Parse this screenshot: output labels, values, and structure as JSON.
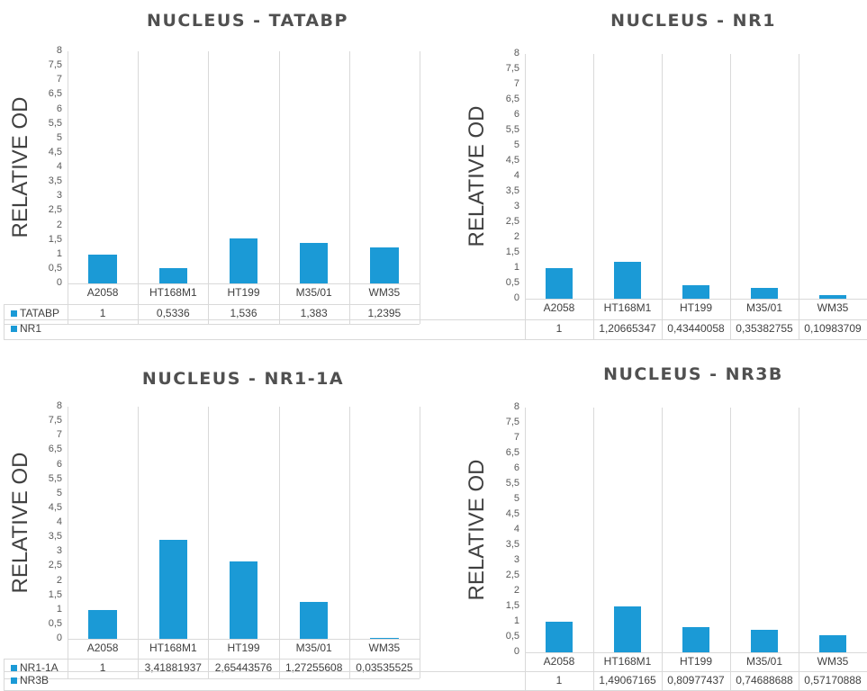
{
  "chart_data": [
    {
      "type": "bar",
      "title": "NUCLEUS - TATABP",
      "ylabel": "RELATIVE OD",
      "categories": [
        "A2058",
        "HT168M1",
        "HT199",
        "M35/01",
        "WM35"
      ],
      "series": [
        {
          "name": "TATABP",
          "values": [
            1,
            0.5336,
            1.536,
            1.383,
            1.2395
          ]
        }
      ],
      "value_labels": [
        "1",
        "0,5336",
        "1,536",
        "1,383",
        "1,2395"
      ],
      "yticks": [
        "0",
        "0,5",
        "1",
        "1,5",
        "2",
        "2,5",
        "3",
        "3,5",
        "4",
        "4,5",
        "5",
        "5,5",
        "6",
        "6,5",
        "7",
        "7,5",
        "8"
      ],
      "ylim": [
        0,
        8
      ]
    },
    {
      "type": "bar",
      "title": "NUCLEUS - NR1",
      "ylabel": "RELATIVE OD",
      "categories": [
        "A2058",
        "HT168M1",
        "HT199",
        "M35/01",
        "WM35"
      ],
      "series": [
        {
          "name": "NR1",
          "values": [
            1,
            1.20665347,
            0.43440058,
            0.35382755,
            0.10983709
          ]
        }
      ],
      "value_labels": [
        "1",
        "1,20665347",
        "0,43440058",
        "0,35382755",
        "0,10983709"
      ],
      "yticks": [
        "0",
        "0,5",
        "1",
        "1,5",
        "2",
        "2,5",
        "3",
        "3,5",
        "4",
        "4,5",
        "5",
        "5,5",
        "6",
        "6,5",
        "7",
        "7,5",
        "8"
      ],
      "ylim": [
        0,
        8
      ]
    },
    {
      "type": "bar",
      "title": "NUCLEUS - NR1-1A",
      "ylabel": "RELATIVE OD",
      "categories": [
        "A2058",
        "HT168M1",
        "HT199",
        "M35/01",
        "WM35"
      ],
      "series": [
        {
          "name": "NR1-1A",
          "values": [
            1,
            3.41881937,
            2.65443576,
            1.27255608,
            0.03535525
          ]
        }
      ],
      "value_labels": [
        "1",
        "3,41881937",
        "2,65443576",
        "1,27255608",
        "0,03535525"
      ],
      "yticks": [
        "0",
        "0,5",
        "1",
        "1,5",
        "2",
        "2,5",
        "3",
        "3,5",
        "4",
        "4,5",
        "5",
        "5,5",
        "6",
        "6,5",
        "7",
        "7,5",
        "8"
      ],
      "ylim": [
        0,
        8
      ]
    },
    {
      "type": "bar",
      "title": "NUCLEUS - NR3B",
      "ylabel": "RELATIVE OD",
      "categories": [
        "A2058",
        "HT168M1",
        "HT199",
        "M35/01",
        "WM35"
      ],
      "series": [
        {
          "name": "NR3B",
          "values": [
            1,
            1.49067165,
            0.80977437,
            0.74688688,
            0.57170888
          ]
        }
      ],
      "value_labels": [
        "1",
        "1,49067165",
        "0,80977437",
        "0,74688688",
        "0,57170888"
      ],
      "yticks": [
        "0",
        "0,5",
        "1",
        "1,5",
        "2",
        "2,5",
        "3",
        "3,5",
        "4",
        "4,5",
        "5",
        "5,5",
        "6",
        "6,5",
        "7",
        "7,5",
        "8"
      ],
      "ylim": [
        0,
        8
      ]
    }
  ],
  "colors": {
    "bar": "#1b9ad6",
    "grid": "#d9d9d9"
  }
}
